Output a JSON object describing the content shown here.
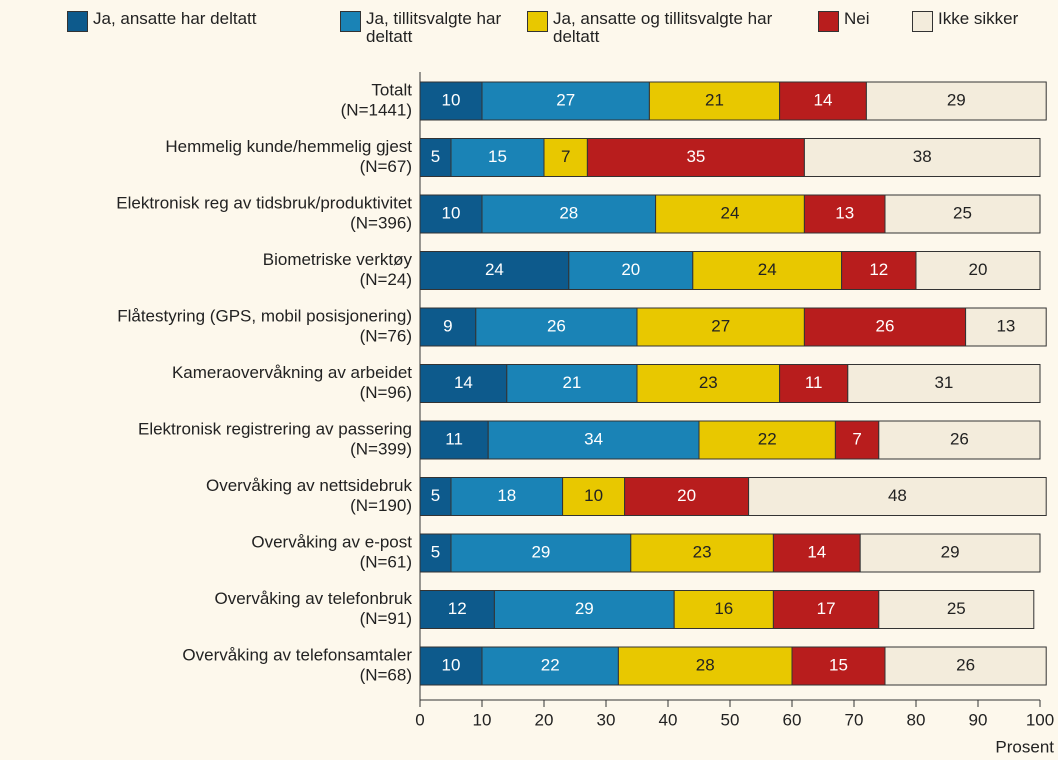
{
  "chart_data": {
    "type": "stacked_barh",
    "categories": [
      [
        "Totalt",
        "(N=1441)"
      ],
      [
        "Hemmelig kunde/hemmelig gjest",
        "(N=67)"
      ],
      [
        "Elektronisk reg av tidsbruk/produktivitet",
        "(N=396)"
      ],
      [
        "Biometriske verktøy",
        "(N=24)"
      ],
      [
        "Flåtestyring (GPS, mobil posisjonering)",
        "(N=76)"
      ],
      [
        "Kameraovervåkning av arbeidet",
        "(N=96)"
      ],
      [
        "Elektronisk registrering av passering",
        "(N=399)"
      ],
      [
        "Overvåking av nettsidebruk",
        "(N=190)"
      ],
      [
        "Overvåking av e-post",
        "(N=61)"
      ],
      [
        "Overvåking av telefonbruk",
        "(N=91)"
      ],
      [
        "Overvåking av telefonsamtaler",
        "(N=68)"
      ]
    ],
    "series": [
      {
        "name": "Ja, ansatte har deltatt",
        "color": "#0d5a8c",
        "text_color": "#ffffff",
        "values": [
          10,
          5,
          10,
          24,
          9,
          14,
          11,
          5,
          5,
          12,
          10
        ]
      },
      {
        "name": "Ja, tillitsvalgte har deltatt",
        "color": "#1a83b6",
        "text_color": "#ffffff",
        "values": [
          27,
          15,
          28,
          20,
          26,
          21,
          34,
          18,
          29,
          29,
          22
        ]
      },
      {
        "name": "Ja, ansatte og tillitsvalgte har deltatt",
        "color": "#e8c800",
        "text_color": "#222222",
        "values": [
          21,
          7,
          24,
          24,
          27,
          23,
          22,
          10,
          23,
          16,
          28
        ]
      },
      {
        "name": "Nei",
        "color": "#b81d1d",
        "text_color": "#ffffff",
        "values": [
          14,
          35,
          13,
          12,
          26,
          11,
          7,
          20,
          14,
          17,
          15
        ]
      },
      {
        "name": "Ikke sikker",
        "color": "#f3ecdc",
        "text_color": "#222222",
        "values": [
          29,
          38,
          25,
          20,
          13,
          31,
          26,
          48,
          29,
          25,
          26
        ]
      }
    ],
    "xlabel": "Prosent",
    "xlim": [
      0,
      100
    ],
    "xticks": [
      0,
      10,
      20,
      30,
      40,
      50,
      60,
      70,
      80,
      90,
      100
    ]
  }
}
